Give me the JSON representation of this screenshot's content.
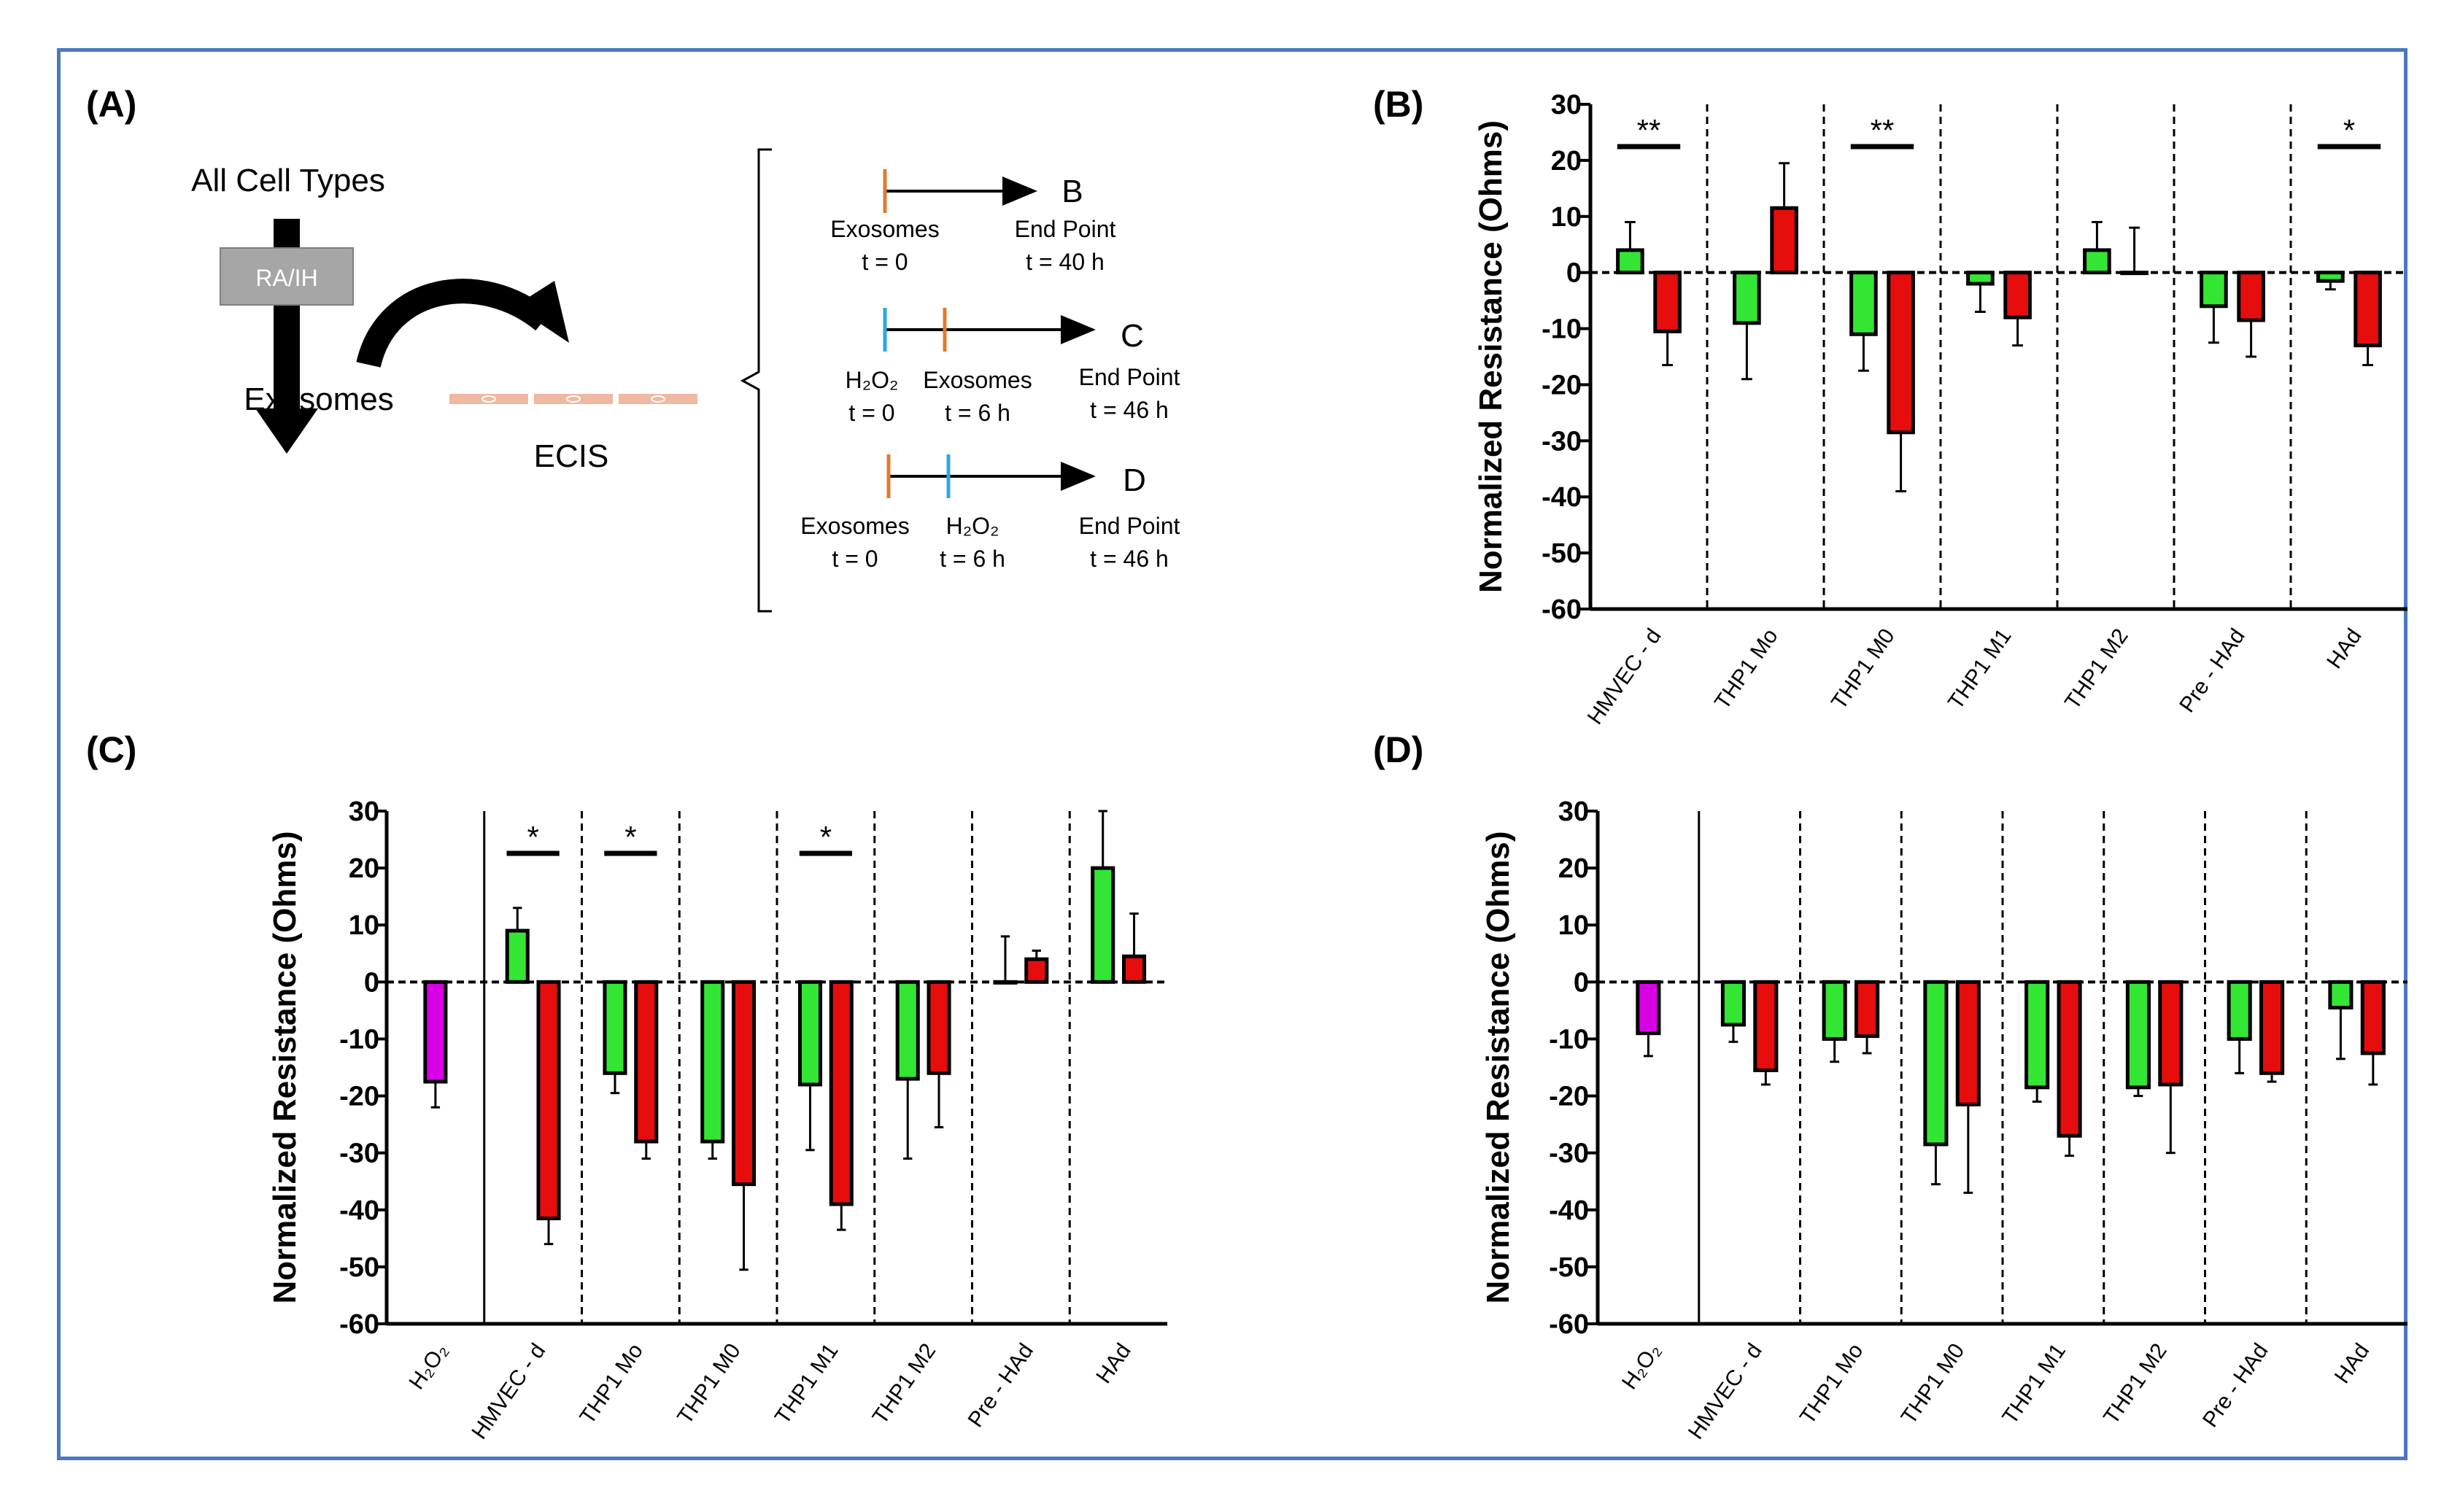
{
  "colors": {
    "frame": "#4a78c2",
    "green": "#33e633",
    "red": "#e60d0d",
    "magenta": "#d900e6",
    "orange": "#e07b2e",
    "blue": "#2ba8e0",
    "gray": "#a6a6a6",
    "salmon": "#f0b8a0"
  },
  "panel_a": {
    "label": "(A)",
    "all_cell_types": "All Cell Types",
    "ra_ih": "RA/IH",
    "exosomes": "Exosomes",
    "ecis": "ECIS",
    "timelines": [
      {
        "letter": "B",
        "events": [
          {
            "name": "Exosomes",
            "time": "t = 0"
          }
        ],
        "end_label": "End Point",
        "end_time": "t = 40 h"
      },
      {
        "letter": "C",
        "events": [
          {
            "name": "H₂O₂",
            "time": "t = 0"
          },
          {
            "name": "Exosomes",
            "time": "t = 6 h"
          }
        ],
        "end_label": "End Point",
        "end_time": "t = 46 h"
      },
      {
        "letter": "D",
        "events": [
          {
            "name": "Exosomes",
            "time": "t = 0"
          },
          {
            "name": "H₂O₂",
            "time": "t = 6 h"
          }
        ],
        "end_label": "End Point",
        "end_time": "t = 46 h"
      }
    ]
  },
  "chart_data": [
    {
      "panel": "(B)",
      "type": "bar",
      "ylabel": "Normalized Resistance (Ohms)",
      "ylim": [
        -60,
        30
      ],
      "yticks": [
        30,
        20,
        10,
        0,
        -10,
        -20,
        -30,
        -40,
        -50,
        -60
      ],
      "categories": [
        "HMVEC - d",
        "THP1 Mo",
        "THP1 M0",
        "THP1 M1",
        "THP1 M2",
        "Pre - HAd",
        "HAd"
      ],
      "series": [
        {
          "name": "RA",
          "color": "green",
          "values": [
            4,
            -9,
            -11,
            -2,
            4,
            -6,
            -1.5
          ],
          "errors": [
            5,
            10,
            6.5,
            5,
            5,
            6.5,
            1.5
          ]
        },
        {
          "name": "IH",
          "color": "red",
          "values": [
            -10.5,
            11.5,
            -28.5,
            -8,
            0,
            -8.5,
            -13
          ],
          "errors": [
            6,
            8,
            10.5,
            5,
            8,
            6.5,
            3.5
          ]
        }
      ],
      "significance": [
        {
          "category": 0,
          "label": "**"
        },
        {
          "category": 2,
          "label": "**"
        },
        {
          "category": 6,
          "label": "*"
        }
      ]
    },
    {
      "panel": "(C)",
      "type": "bar",
      "ylabel": "Normalized Resistance (Ohms)",
      "ylim": [
        -60,
        30
      ],
      "yticks": [
        30,
        20,
        10,
        0,
        -10,
        -20,
        -30,
        -40,
        -50,
        -60
      ],
      "control": {
        "label": "H₂O₂",
        "value": -17.5,
        "error": 4.5
      },
      "categories": [
        "HMVEC - d",
        "THP1 Mo",
        "THP1 M0",
        "THP1 M1",
        "THP1 M2",
        "Pre - HAd",
        "HAd"
      ],
      "series": [
        {
          "name": "RA",
          "color": "green",
          "values": [
            9,
            -16,
            -28,
            -18,
            -17,
            0,
            20
          ],
          "errors": [
            4,
            3.5,
            3,
            11.5,
            14,
            8,
            10
          ]
        },
        {
          "name": "IH",
          "color": "red",
          "values": [
            -41.5,
            -28,
            -35.5,
            -39,
            -16,
            4,
            4.5
          ],
          "errors": [
            4.5,
            3,
            15,
            4.5,
            9.5,
            1.5,
            7.5
          ]
        }
      ],
      "significance": [
        {
          "category": 0,
          "label": "*"
        },
        {
          "category": 1,
          "label": "*"
        },
        {
          "category": 3,
          "label": "*"
        }
      ]
    },
    {
      "panel": "(D)",
      "type": "bar",
      "ylabel": "Normalized Resistance (Ohms)",
      "ylim": [
        -60,
        30
      ],
      "yticks": [
        30,
        20,
        10,
        0,
        -10,
        -20,
        -30,
        -40,
        -50,
        -60
      ],
      "control": {
        "label": "H₂O₂",
        "value": -9,
        "error": 4
      },
      "categories": [
        "HMVEC - d",
        "THP1 Mo",
        "THP1 M0",
        "THP1 M1",
        "THP1 M2",
        "Pre - HAd",
        "HAd"
      ],
      "series": [
        {
          "name": "RA",
          "color": "green",
          "values": [
            -7.5,
            -10,
            -28.5,
            -18.5,
            -18.5,
            -10,
            -4.5
          ],
          "errors": [
            3,
            4,
            7,
            2.5,
            1.5,
            6,
            9
          ]
        },
        {
          "name": "IH",
          "color": "red",
          "values": [
            -15.5,
            -9.5,
            -21.5,
            -27,
            -18,
            -16,
            -12.5
          ],
          "errors": [
            2.5,
            3,
            15.5,
            3.5,
            12,
            1.5,
            5.5
          ]
        }
      ],
      "significance": []
    }
  ]
}
